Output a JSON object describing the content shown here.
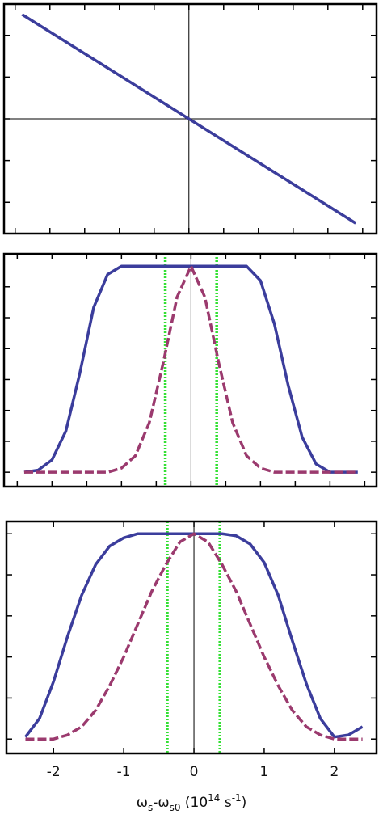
{
  "chart_data": [
    {
      "type": "line",
      "xlim": [
        -2.66,
        2.7
      ],
      "ylim": [
        -1.1,
        1.1
      ],
      "xticks": [
        -2.5,
        -2,
        -1.5,
        -1,
        -0.5,
        0,
        0.5,
        1,
        1.5,
        2,
        2.5
      ],
      "yticks": [
        -0.8,
        -0.4,
        0,
        0.4,
        0.8
      ],
      "tick_labels": false,
      "zero_x": true,
      "zero_y": true,
      "x": [
        -2.4,
        2.4
      ],
      "series": [
        {
          "color": "#3b3d9c",
          "style": "solid",
          "values": [
            1.0,
            -1.0
          ]
        }
      ]
    },
    {
      "type": "line",
      "xlim": [
        -2.69,
        2.67
      ],
      "ylim": [
        -0.07,
        1.06
      ],
      "xticks": [
        -2.5,
        -2,
        -1.5,
        -1,
        -0.5,
        0,
        0.5,
        1,
        1.5,
        2,
        2.5
      ],
      "yticks": [
        0,
        0.15,
        0.3,
        0.45,
        0.6,
        0.75,
        0.9
      ],
      "tick_labels": false,
      "zero_x": true,
      "zero_y": false,
      "vlines": [
        -0.37,
        0.37
      ],
      "vline_color": "#33e033",
      "x": [
        -2.4,
        -2.2,
        -2.0,
        -1.8,
        -1.6,
        -1.4,
        -1.2,
        -1.0,
        -0.8,
        -0.6,
        -0.4,
        -0.2,
        0,
        0.2,
        0.4,
        0.6,
        0.8,
        1.0,
        1.2,
        1.4,
        1.6,
        1.8,
        2.0,
        2.2,
        2.4
      ],
      "series": [
        {
          "color": "#3b3d9c",
          "style": "solid",
          "values": [
            0,
            0.01,
            0.06,
            0.2,
            0.48,
            0.8,
            0.96,
            1,
            1,
            1,
            1,
            1,
            1,
            1,
            1,
            1,
            1,
            0.93,
            0.72,
            0.42,
            0.17,
            0.04,
            0,
            0,
            0
          ]
        },
        {
          "color": "#9b3a6e",
          "style": "dashed",
          "values": [
            0,
            0,
            0,
            0,
            0,
            0,
            0,
            0.02,
            0.08,
            0.24,
            0.53,
            0.85,
            1,
            0.85,
            0.53,
            0.24,
            0.08,
            0.02,
            0,
            0,
            0,
            0,
            0,
            0,
            0
          ]
        }
      ]
    },
    {
      "type": "line",
      "xlim": [
        -2.67,
        2.6
      ],
      "ylim": [
        -0.07,
        1.06
      ],
      "xticks": [
        -2,
        -1,
        0,
        1,
        2
      ],
      "yticks": [
        0,
        0.2,
        0.4,
        0.6,
        0.8,
        1
      ],
      "tick_labels": true,
      "zero_x": true,
      "zero_y": false,
      "vlines": [
        -0.38,
        0.37
      ],
      "vline_color": "#33e033",
      "x": [
        -2.4,
        -2.2,
        -2.0,
        -1.8,
        -1.6,
        -1.4,
        -1.2,
        -1.0,
        -0.8,
        -0.6,
        -0.4,
        -0.2,
        0,
        0.2,
        0.4,
        0.6,
        0.8,
        1.0,
        1.2,
        1.4,
        1.6,
        1.8,
        2.0,
        2.2,
        2.4
      ],
      "series": [
        {
          "color": "#3b3d9c",
          "style": "solid",
          "values": [
            0.01,
            0.1,
            0.28,
            0.5,
            0.7,
            0.85,
            0.94,
            0.98,
            1,
            1,
            1,
            1,
            1,
            1,
            1,
            0.99,
            0.95,
            0.86,
            0.7,
            0.48,
            0.27,
            0.1,
            0.01,
            0.02,
            0.06
          ]
        },
        {
          "color": "#9b3a6e",
          "style": "dashed",
          "values": [
            0,
            0,
            0,
            0.02,
            0.06,
            0.14,
            0.26,
            0.4,
            0.56,
            0.72,
            0.85,
            0.96,
            1,
            0.96,
            0.85,
            0.72,
            0.56,
            0.4,
            0.26,
            0.14,
            0.06,
            0.02,
            0,
            0,
            0
          ]
        }
      ],
      "xlabel_parts": [
        {
          "text": "ω"
        },
        {
          "text": "s",
          "shift": "sub"
        },
        {
          "text": "-ω"
        },
        {
          "text": "s0",
          "shift": "sub"
        },
        {
          "text": " (10"
        },
        {
          "text": "14",
          "shift": "super"
        },
        {
          "text": " s"
        },
        {
          "text": "-1",
          "shift": "super"
        },
        {
          "text": ")"
        }
      ]
    }
  ]
}
